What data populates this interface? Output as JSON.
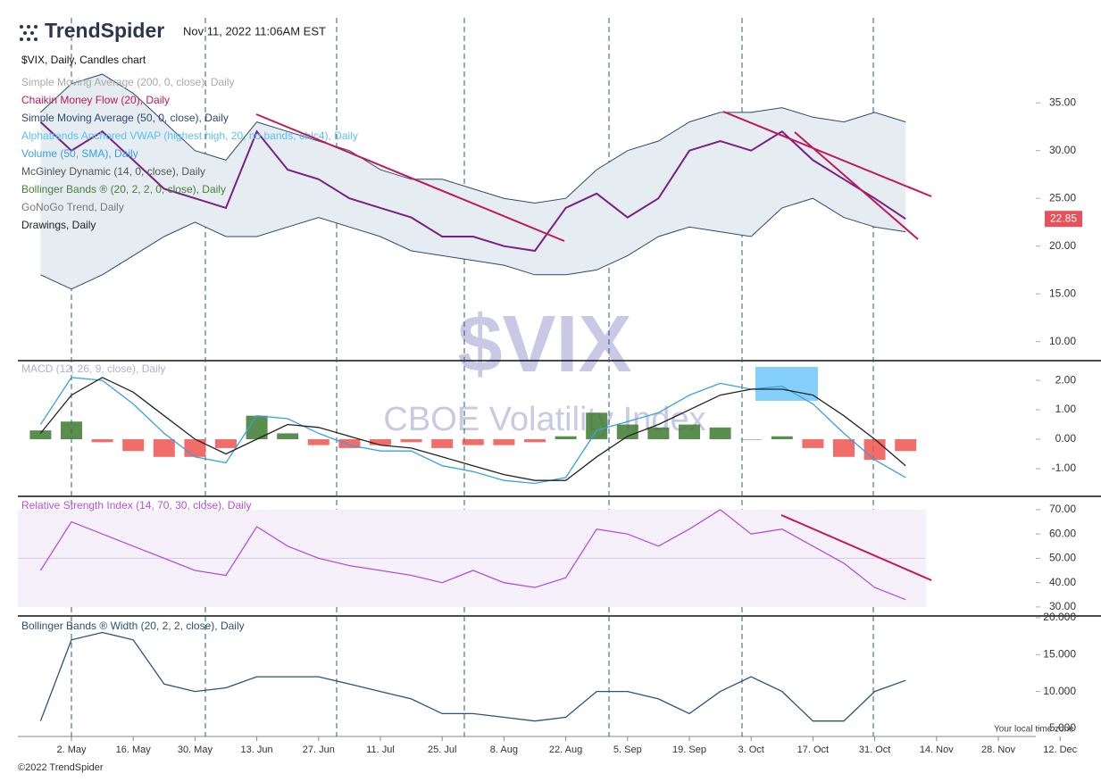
{
  "header": {
    "brand": "TrendSpider",
    "timestamp": "Nov 11, 2022 11:06AM EST"
  },
  "watermark": {
    "symbol": "$VIX",
    "name": "CBOE Volatility Index"
  },
  "footer": {
    "copyright": "©2022 TrendSpider",
    "timezone": "Your local time zone"
  },
  "x_axis": {
    "categories": [
      null,
      "2. May",
      null,
      "16. May",
      null,
      "30. May",
      null,
      "13. Jun",
      null,
      "27. Jun",
      null,
      "11. Jul",
      null,
      "25. Jul",
      null,
      "8. Aug",
      null,
      "22. Aug",
      null,
      "5. Sep",
      null,
      "19. Sep",
      null,
      "3. Oct",
      null,
      "17. Oct",
      null,
      "31. Oct",
      null,
      "14. Nov",
      null,
      "28. Nov",
      null,
      "12. Dec"
    ]
  },
  "chart_data": [
    {
      "type": "price",
      "title": "$VIX, Daily, Candles chart",
      "legend": [
        "Simple Moving Average (200, 0, close), Daily",
        "Chaikin Money Flow (20), Daily",
        "Simple Moving Average (50, 0, close), Daily",
        "Alphatrends Anchored VWAP (highest high, 20, no bands, ohlc4), Daily",
        "Volume (50, SMA), Daily",
        "McGinley Dynamic (14, 0, close), Daily",
        "GoNoGo Trend, Daily",
        "Drawings, Daily"
      ],
      "ylim": [
        8.1,
        43.9
      ],
      "yticks": [
        {
          "value": 10,
          "label": "10.00"
        },
        {
          "value": 15,
          "label": "15.00"
        },
        {
          "value": 20,
          "label": "20.00"
        },
        {
          "value": 25,
          "label": "25.00"
        },
        {
          "value": 30,
          "label": "30.00"
        },
        {
          "value": 35,
          "label": "35.00"
        }
      ],
      "series": [
        {
          "name": "$VIX",
          "color": "#7b1f86",
          "values": [
            33,
            30,
            32,
            29,
            26,
            25,
            24,
            32,
            28,
            27,
            25,
            24,
            23,
            21,
            21,
            20,
            19.5,
            24,
            25.5,
            23,
            25,
            30,
            31,
            30,
            32,
            29,
            27,
            25,
            22.85,
            null,
            null,
            null,
            null,
            null
          ]
        },
        {
          "name": "Bollinger Bands ® (20, 2, 2, 0, close), Daily",
          "color": "#2c4a6e",
          "band_color": "#e6edf2",
          "upper": [
            34,
            37,
            38,
            36,
            33,
            30,
            29,
            33,
            32,
            31,
            30,
            28,
            27,
            27,
            26,
            25,
            24.5,
            25,
            28,
            30,
            31,
            33,
            34,
            34,
            34.5,
            33.5,
            33,
            34,
            33,
            null,
            null,
            null,
            null,
            null
          ],
          "lower": [
            17,
            15.5,
            17,
            19,
            21,
            22.5,
            21,
            21,
            22,
            23,
            22,
            21,
            19.5,
            19,
            18.5,
            18,
            17,
            17,
            17.5,
            19,
            21,
            22,
            21.5,
            21,
            24,
            25,
            23,
            22,
            21.5,
            null,
            null,
            null,
            null,
            null
          ]
        }
      ]
    },
    {
      "type": "macd",
      "title": "MACD (12, 26, 9, close), Daily",
      "ylim": [
        -1.91,
        2.64
      ],
      "yticks": [
        {
          "value": -1,
          "label": "-1.00"
        },
        {
          "value": 0,
          "label": "0.00"
        },
        {
          "value": 1,
          "label": "1.00"
        },
        {
          "value": 2,
          "label": "2.00"
        }
      ],
      "macd_color": "#3aa0e0",
      "signal_color": "#222222",
      "positive_color": "#3d7a2f",
      "negative_color": "#ef5350",
      "macd": [
        0.5,
        2.1,
        2.0,
        1.2,
        0.2,
        -0.6,
        -0.8,
        0.8,
        0.7,
        0.2,
        -0.2,
        -0.4,
        -0.4,
        -0.9,
        -1.1,
        -1.4,
        -1.5,
        -1.3,
        0.3,
        0.6,
        0.9,
        1.5,
        1.9,
        1.7,
        1.8,
        1.2,
        0.2,
        -0.7,
        -1.3,
        null,
        null,
        null,
        null,
        null
      ],
      "signal": [
        0.2,
        1.5,
        2.1,
        1.6,
        0.8,
        0.0,
        -0.5,
        0.0,
        0.5,
        0.4,
        0.1,
        -0.2,
        -0.3,
        -0.6,
        -0.9,
        -1.2,
        -1.4,
        -1.4,
        -0.6,
        0.1,
        0.5,
        1.0,
        1.5,
        1.7,
        1.7,
        1.5,
        0.8,
        0.0,
        -0.9,
        null,
        null,
        null,
        null,
        null
      ],
      "histogram": [
        0.3,
        0.6,
        -0.1,
        -0.4,
        -0.6,
        -0.6,
        -0.3,
        0.8,
        0.2,
        -0.2,
        -0.3,
        -0.2,
        -0.1,
        -0.3,
        -0.2,
        -0.2,
        -0.1,
        0.1,
        0.9,
        0.5,
        0.4,
        0.5,
        0.4,
        0.0,
        0.1,
        -0.3,
        -0.6,
        -0.7,
        -0.4,
        null,
        null,
        null,
        null,
        null
      ]
    },
    {
      "type": "line",
      "title": "Relative Strength Index (14, 70, 30, close), Daily",
      "ylim": [
        26.3,
        75.1
      ],
      "band": [
        30,
        70
      ],
      "midline": 50,
      "band_color": "#f6f0fa",
      "yticks": [
        {
          "value": 30,
          "label": "30.00"
        },
        {
          "value": 40,
          "label": "40.00"
        },
        {
          "value": 50,
          "label": "50.00"
        },
        {
          "value": 60,
          "label": "60.00"
        },
        {
          "value": 70,
          "label": "70.00"
        }
      ],
      "color": "#b44fe0",
      "values": [
        45,
        65,
        60,
        55,
        50,
        45,
        43,
        63,
        55,
        50,
        47,
        45,
        43,
        40,
        45,
        40,
        38,
        42,
        62,
        60,
        55,
        62,
        70,
        60,
        62,
        55,
        48,
        38,
        33,
        null,
        null,
        null,
        null,
        null
      ]
    },
    {
      "type": "line",
      "title": "Bollinger Bands ® Width (20, 2, 2, close), Daily",
      "ylim": [
        3.9,
        20
      ],
      "yticks": [
        {
          "value": 5,
          "label": "5.000"
        },
        {
          "value": 10,
          "label": "10.000"
        },
        {
          "value": 15,
          "label": "15.000"
        },
        {
          "value": 20,
          "label": "20.000"
        }
      ],
      "color": "#2b5278",
      "values": [
        6,
        17,
        18,
        17,
        11,
        10,
        10.5,
        12,
        12,
        12,
        11,
        10,
        9,
        7,
        7,
        6.5,
        6,
        6.5,
        10,
        10,
        9,
        7,
        10,
        12,
        10,
        6,
        6,
        10,
        11.5,
        null,
        null,
        null,
        null,
        null
      ]
    }
  ]
}
